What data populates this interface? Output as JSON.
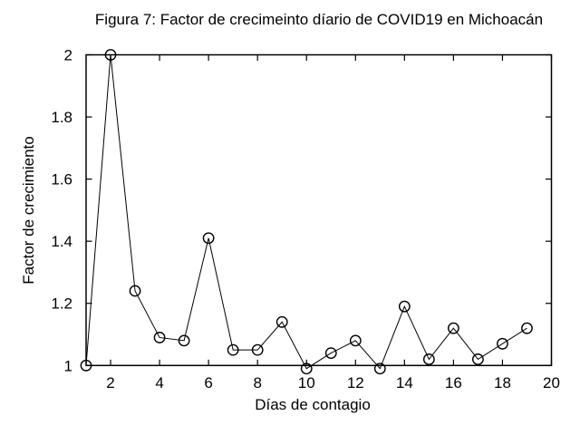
{
  "figure": {
    "background_color": "#ffffff",
    "ink_color": "#000000"
  },
  "chart_data": {
    "type": "line",
    "title": "Figura 7: Factor de crecimeinto díario de COVID19 en Michoacán",
    "xlabel": "Días de contagio",
    "ylabel": "Factor de crecimiento",
    "x": [
      1,
      2,
      3,
      4,
      5,
      6,
      7,
      8,
      9,
      10,
      11,
      12,
      13,
      14,
      15,
      16,
      17,
      18,
      19
    ],
    "y": [
      1.0,
      2.0,
      1.24,
      1.09,
      1.08,
      1.41,
      1.05,
      1.05,
      1.14,
      0.99,
      1.04,
      1.08,
      0.99,
      1.19,
      1.02,
      1.12,
      1.02,
      1.07,
      1.12
    ],
    "xlim": [
      1,
      20
    ],
    "ylim": [
      1,
      2
    ],
    "xticks": [
      2,
      4,
      6,
      8,
      10,
      12,
      14,
      16,
      18,
      20
    ],
    "xtick_labels": [
      "2",
      "4",
      "6",
      "8",
      "10",
      "12",
      "14",
      "16",
      "18",
      "20"
    ],
    "yticks": [
      1,
      1.2,
      1.4,
      1.6,
      1.8,
      2
    ],
    "ytick_labels": [
      "1",
      "1.2",
      "1.4",
      "1.6",
      "1.8",
      "2"
    ],
    "marker": "open-circle",
    "line_color": "#000000",
    "grid": false,
    "legend": null
  }
}
